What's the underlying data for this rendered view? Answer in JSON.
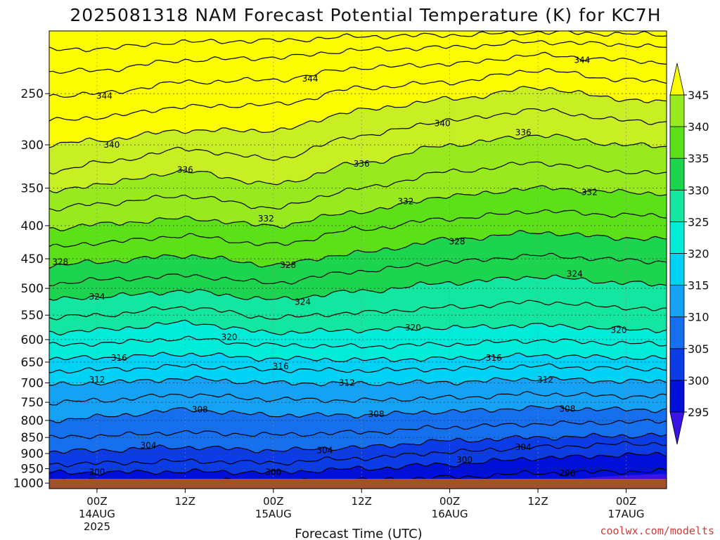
{
  "chart_data": {
    "type": "contour",
    "title": "2025081318 NAM Forecast Potential Temperature (K) for KC7H",
    "xlabel": "Forecast Time (UTC)",
    "ylabel": "",
    "y_ticks": [
      250,
      300,
      350,
      400,
      450,
      500,
      550,
      600,
      650,
      700,
      750,
      800,
      850,
      900,
      950,
      1000
    ],
    "y_range_hpa": [
      1020,
      200
    ],
    "y_scale": "log",
    "x_range_hours": [
      -6.5,
      77.5
    ],
    "x_ticks": [
      {
        "hour": 0,
        "lines": [
          "00Z",
          "14AUG",
          "2025"
        ]
      },
      {
        "hour": 12,
        "lines": [
          "12Z"
        ]
      },
      {
        "hour": 24,
        "lines": [
          "00Z",
          "15AUG"
        ]
      },
      {
        "hour": 36,
        "lines": [
          "12Z"
        ]
      },
      {
        "hour": 48,
        "lines": [
          "00Z",
          "16AUG"
        ]
      },
      {
        "hour": 60,
        "lines": [
          "12Z"
        ]
      },
      {
        "hour": 72,
        "lines": [
          "00Z",
          "17AUG"
        ]
      }
    ],
    "grid": "dotted",
    "colorbar": {
      "placement": "right",
      "levels": [
        295,
        300,
        305,
        310,
        315,
        320,
        325,
        330,
        335,
        340,
        345
      ],
      "colors": [
        "#3a14e6",
        "#0010d8",
        "#0c3ce6",
        "#1670ee",
        "#16a2f4",
        "#00d2f6",
        "#00ecd8",
        "#12e6a0",
        "#1cd44e",
        "#5ce018",
        "#98ea1e",
        "#c8ee24",
        "#fcfc00"
      ]
    },
    "surface_color": "#a0522d",
    "series": [
      {
        "values": [
          [
            -6.5,
            993
          ],
          [
            0,
            992
          ],
          [
            12,
            992
          ],
          [
            24,
            993
          ],
          [
            36,
            990
          ],
          [
            48,
            980
          ],
          [
            60,
            965
          ],
          [
            72,
            960
          ],
          [
            77.5,
            958
          ]
        ]
      },
      {
        "label": "300",
        "values": [
          [
            -6.5,
            964
          ],
          [
            0,
            963
          ],
          [
            12,
            960
          ],
          [
            24,
            962
          ],
          [
            36,
            950
          ],
          [
            48,
            935
          ],
          [
            60,
            915
          ],
          [
            72,
            905
          ],
          [
            77.5,
            903
          ]
        ]
      },
      {
        "values": [
          [
            -6.5,
            935
          ],
          [
            0,
            932
          ],
          [
            12,
            925
          ],
          [
            24,
            930
          ],
          [
            36,
            915
          ],
          [
            48,
            895
          ],
          [
            60,
            880
          ],
          [
            72,
            870
          ],
          [
            77.5,
            868
          ]
        ]
      },
      {
        "label": "304",
        "values": [
          [
            -6.5,
            895
          ],
          [
            0,
            890
          ],
          [
            12,
            880
          ],
          [
            24,
            890
          ],
          [
            36,
            880
          ],
          [
            48,
            860
          ],
          [
            60,
            850
          ],
          [
            72,
            845
          ],
          [
            77.5,
            843
          ]
        ]
      },
      {
        "values": [
          [
            -6.5,
            850
          ],
          [
            0,
            845
          ],
          [
            12,
            835
          ],
          [
            24,
            842
          ],
          [
            36,
            835
          ],
          [
            48,
            820
          ],
          [
            60,
            810
          ],
          [
            72,
            805
          ],
          [
            77.5,
            802
          ]
        ]
      },
      {
        "label": "308",
        "values": [
          [
            -6.5,
            800
          ],
          [
            0,
            790
          ],
          [
            12,
            770
          ],
          [
            24,
            785
          ],
          [
            36,
            785
          ],
          [
            48,
            775
          ],
          [
            60,
            765
          ],
          [
            72,
            770
          ],
          [
            77.5,
            770
          ]
        ]
      },
      {
        "values": [
          [
            -6.5,
            752
          ],
          [
            0,
            745
          ],
          [
            12,
            730
          ],
          [
            24,
            742
          ],
          [
            36,
            745
          ],
          [
            48,
            738
          ],
          [
            60,
            728
          ],
          [
            72,
            734
          ],
          [
            77.5,
            735
          ]
        ]
      },
      {
        "label": "312",
        "values": [
          [
            -6.5,
            705
          ],
          [
            0,
            700
          ],
          [
            12,
            690
          ],
          [
            24,
            700
          ],
          [
            36,
            702
          ],
          [
            48,
            698
          ],
          [
            60,
            690
          ],
          [
            72,
            696
          ],
          [
            77.5,
            697
          ]
        ]
      },
      {
        "values": [
          [
            -6.5,
            672
          ],
          [
            0,
            668
          ],
          [
            12,
            660
          ],
          [
            24,
            668
          ],
          [
            36,
            670
          ],
          [
            48,
            666
          ],
          [
            60,
            660
          ],
          [
            72,
            665
          ],
          [
            77.5,
            666
          ]
        ]
      },
      {
        "label": "316",
        "values": [
          [
            -6.5,
            643
          ],
          [
            0,
            640
          ],
          [
            12,
            632
          ],
          [
            24,
            642
          ],
          [
            36,
            645
          ],
          [
            48,
            642
          ],
          [
            60,
            635
          ],
          [
            72,
            640
          ],
          [
            77.5,
            641
          ]
        ]
      },
      {
        "values": [
          [
            -6.5,
            612
          ],
          [
            0,
            608
          ],
          [
            12,
            598
          ],
          [
            24,
            612
          ],
          [
            36,
            615
          ],
          [
            48,
            610
          ],
          [
            60,
            602
          ],
          [
            72,
            608
          ],
          [
            77.5,
            610
          ]
        ]
      },
      {
        "label": "320",
        "values": [
          [
            -6.5,
            585
          ],
          [
            0,
            580
          ],
          [
            12,
            565
          ],
          [
            24,
            585
          ],
          [
            36,
            580
          ],
          [
            48,
            575
          ],
          [
            60,
            570
          ],
          [
            72,
            578
          ],
          [
            77.5,
            580
          ]
        ]
      },
      {
        "values": [
          [
            -6.5,
            555
          ],
          [
            0,
            550
          ],
          [
            12,
            535
          ],
          [
            24,
            555
          ],
          [
            36,
            545
          ],
          [
            48,
            535
          ],
          [
            60,
            525
          ],
          [
            72,
            535
          ],
          [
            77.5,
            540
          ]
        ]
      },
      {
        "label": "324",
        "values": [
          [
            -6.5,
            520
          ],
          [
            0,
            515
          ],
          [
            12,
            505
          ],
          [
            24,
            520
          ],
          [
            36,
            505
          ],
          [
            48,
            490
          ],
          [
            60,
            480
          ],
          [
            72,
            490
          ],
          [
            77.5,
            495
          ]
        ]
      },
      {
        "values": [
          [
            -6.5,
            492
          ],
          [
            0,
            485
          ],
          [
            12,
            478
          ],
          [
            24,
            490
          ],
          [
            36,
            470
          ],
          [
            48,
            455
          ],
          [
            60,
            445
          ],
          [
            72,
            452
          ],
          [
            77.5,
            455
          ]
        ]
      },
      {
        "label": "328",
        "values": [
          [
            -6.5,
            462
          ],
          [
            0,
            455
          ],
          [
            12,
            445
          ],
          [
            24,
            460
          ],
          [
            36,
            440
          ],
          [
            48,
            420
          ],
          [
            60,
            410
          ],
          [
            72,
            418
          ],
          [
            77.5,
            420
          ]
        ]
      },
      {
        "values": [
          [
            -6.5,
            432
          ],
          [
            0,
            425
          ],
          [
            12,
            415
          ],
          [
            24,
            428
          ],
          [
            36,
            405
          ],
          [
            48,
            390
          ],
          [
            60,
            380
          ],
          [
            72,
            385
          ],
          [
            77.5,
            387
          ]
        ]
      },
      {
        "label": "332",
        "values": [
          [
            -6.5,
            405
          ],
          [
            0,
            398
          ],
          [
            12,
            390
          ],
          [
            24,
            400
          ],
          [
            36,
            380
          ],
          [
            48,
            360
          ],
          [
            60,
            350
          ],
          [
            72,
            355
          ],
          [
            77.5,
            357
          ]
        ]
      },
      {
        "values": [
          [
            -6.5,
            378
          ],
          [
            0,
            370
          ],
          [
            12,
            360
          ],
          [
            24,
            375
          ],
          [
            36,
            350
          ],
          [
            48,
            330
          ],
          [
            60,
            320
          ],
          [
            72,
            330
          ],
          [
            77.5,
            332
          ]
        ]
      },
      {
        "label": "336",
        "values": [
          [
            -6.5,
            355
          ],
          [
            0,
            345
          ],
          [
            12,
            330
          ],
          [
            24,
            345
          ],
          [
            36,
            320
          ],
          [
            48,
            300
          ],
          [
            60,
            290
          ],
          [
            72,
            300
          ],
          [
            77.5,
            302
          ]
        ]
      },
      {
        "values": [
          [
            -6.5,
            330
          ],
          [
            0,
            320
          ],
          [
            12,
            305
          ],
          [
            24,
            315
          ],
          [
            36,
            290
          ],
          [
            48,
            275
          ],
          [
            60,
            265
          ],
          [
            72,
            275
          ],
          [
            77.5,
            277
          ]
        ]
      },
      {
        "label": "340",
        "values": [
          [
            -6.5,
            300
          ],
          [
            0,
            295
          ],
          [
            12,
            285
          ],
          [
            24,
            285
          ],
          [
            36,
            265
          ],
          [
            48,
            255
          ],
          [
            60,
            245
          ],
          [
            72,
            255
          ],
          [
            77.5,
            258
          ]
        ]
      },
      {
        "values": [
          [
            -6.5,
            275
          ],
          [
            0,
            272
          ],
          [
            12,
            262
          ],
          [
            24,
            260
          ],
          [
            36,
            245
          ],
          [
            48,
            240
          ],
          [
            60,
            230
          ],
          [
            72,
            238
          ],
          [
            77.5,
            240
          ]
        ]
      },
      {
        "label": "344",
        "values": [
          [
            -6.5,
            252
          ],
          [
            0,
            250
          ],
          [
            12,
            240
          ],
          [
            24,
            238
          ],
          [
            36,
            228
          ],
          [
            48,
            225
          ],
          [
            60,
            218
          ],
          [
            72,
            222
          ],
          [
            77.5,
            224
          ]
        ]
      },
      {
        "values": [
          [
            -6.5,
            232
          ],
          [
            0,
            230
          ],
          [
            12,
            222
          ],
          [
            24,
            220
          ],
          [
            36,
            214
          ],
          [
            48,
            212
          ],
          [
            60,
            208
          ],
          [
            72,
            210
          ],
          [
            77.5,
            212
          ]
        ]
      },
      {
        "values": [
          [
            -6.5,
            214
          ],
          [
            0,
            213
          ],
          [
            12,
            208
          ],
          [
            24,
            207
          ],
          [
            36,
            204
          ],
          [
            48,
            203
          ],
          [
            60,
            201
          ],
          [
            72,
            202
          ],
          [
            77.5,
            203
          ]
        ]
      }
    ],
    "contour_labels": [
      {
        "text": "344",
        "hour": 1,
        "p": 252
      },
      {
        "text": "344",
        "hour": 29,
        "p": 237
      },
      {
        "text": "344",
        "hour": 66,
        "p": 222
      },
      {
        "text": "340",
        "hour": 2,
        "p": 300
      },
      {
        "text": "340",
        "hour": 47,
        "p": 278
      },
      {
        "text": "336",
        "hour": 58,
        "p": 287
      },
      {
        "text": "336",
        "hour": 36,
        "p": 321
      },
      {
        "text": "336",
        "hour": 12,
        "p": 328
      },
      {
        "text": "332",
        "hour": 23,
        "p": 390
      },
      {
        "text": "332",
        "hour": 42,
        "p": 367
      },
      {
        "text": "332",
        "hour": 67,
        "p": 355
      },
      {
        "text": "328",
        "hour": -5,
        "p": 455
      },
      {
        "text": "328",
        "hour": 26,
        "p": 460
      },
      {
        "text": "328",
        "hour": 49,
        "p": 423
      },
      {
        "text": "324",
        "hour": 65,
        "p": 475
      },
      {
        "text": "324",
        "hour": 0,
        "p": 515
      },
      {
        "text": "324",
        "hour": 28,
        "p": 525
      },
      {
        "text": "320",
        "hour": 43,
        "p": 575
      },
      {
        "text": "320",
        "hour": 18,
        "p": 595
      },
      {
        "text": "320",
        "hour": 71,
        "p": 580
      },
      {
        "text": "316",
        "hour": 3,
        "p": 640
      },
      {
        "text": "316",
        "hour": 25,
        "p": 660
      },
      {
        "text": "316",
        "hour": 54,
        "p": 640
      },
      {
        "text": "312",
        "hour": 0,
        "p": 692
      },
      {
        "text": "312",
        "hour": 34,
        "p": 700
      },
      {
        "text": "312",
        "hour": 61,
        "p": 692
      },
      {
        "text": "308",
        "hour": 14,
        "p": 770
      },
      {
        "text": "308",
        "hour": 38,
        "p": 782
      },
      {
        "text": "308",
        "hour": 64,
        "p": 768
      },
      {
        "text": "304",
        "hour": 7,
        "p": 875
      },
      {
        "text": "304",
        "hour": 31,
        "p": 890
      },
      {
        "text": "304",
        "hour": 58,
        "p": 880
      },
      {
        "text": "300",
        "hour": 0,
        "p": 962
      },
      {
        "text": "300",
        "hour": 24,
        "p": 962
      },
      {
        "text": "300",
        "hour": 50,
        "p": 920
      },
      {
        "text": "296",
        "hour": 64,
        "p": 965
      }
    ]
  },
  "credit": "coolwx.com/modelts"
}
